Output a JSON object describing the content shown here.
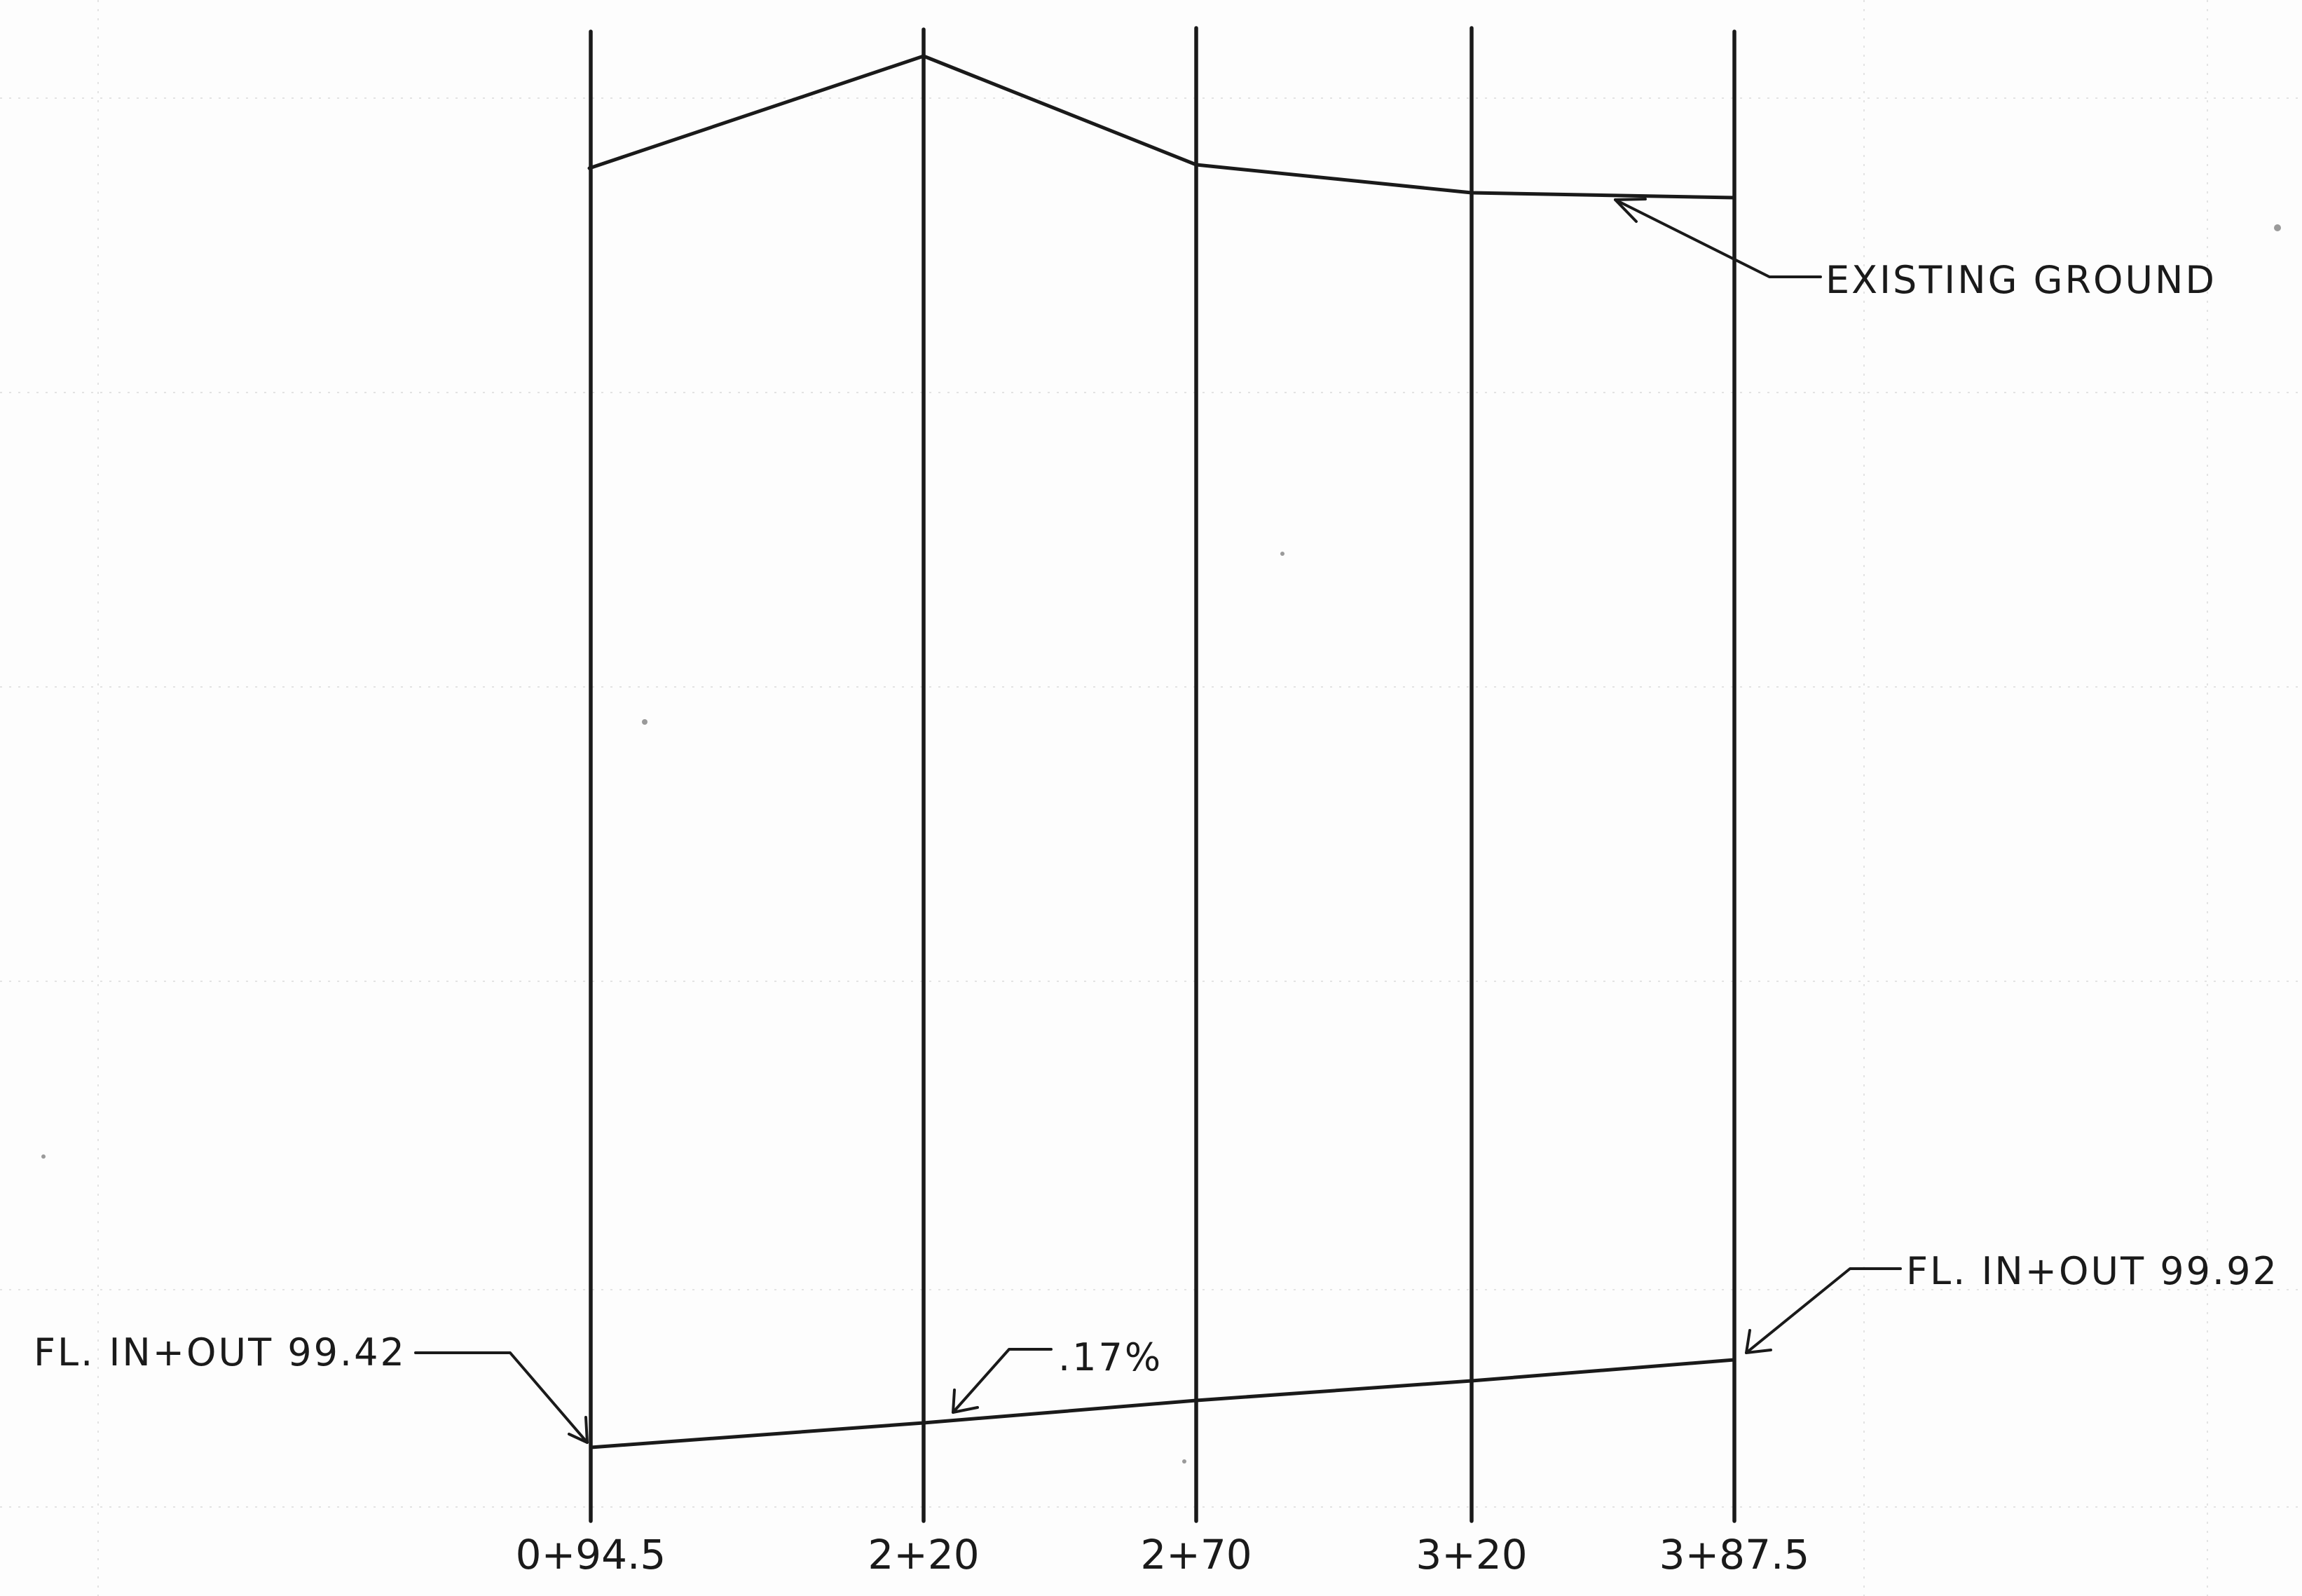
{
  "chart_data": {
    "type": "line",
    "stations": [
      "0+94.5",
      "2+20",
      "2+70",
      "3+20",
      "3+87.5"
    ],
    "series": [
      {
        "name": "EXISTING GROUND"
      }
    ],
    "annotations": {
      "existing_ground": "EXISTING GROUND",
      "fl_left": "FL. IN+OUT 99.42",
      "fl_right": "FL. IN+OUT 99.92",
      "slope": ".17%"
    }
  },
  "colors": {
    "ink": "#1a1a1a",
    "paper": "#fdfdfd"
  }
}
